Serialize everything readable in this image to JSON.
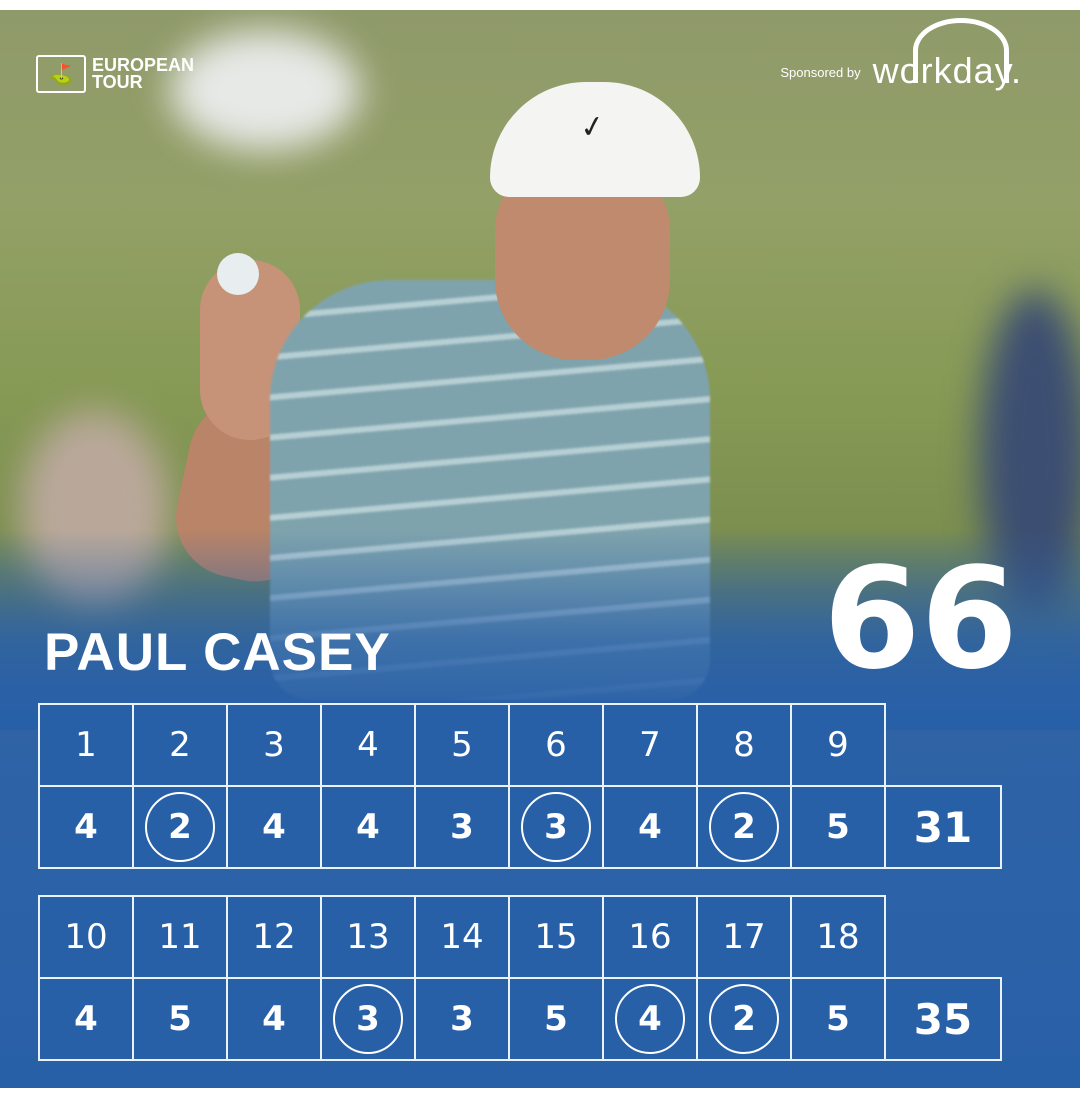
{
  "brand": {
    "logo_line1": "EUROPEAN",
    "logo_line2": "TOUR",
    "sponsored_by": "Sponsored by",
    "sponsor": "workday."
  },
  "player": {
    "name": "PAUL CASEY",
    "total": "66"
  },
  "colors": {
    "panel_blue": "#2860a8",
    "grid_line": "#eaf2fb"
  },
  "front_nine": {
    "holes": [
      "1",
      "2",
      "3",
      "4",
      "5",
      "6",
      "7",
      "8",
      "9"
    ],
    "scores": [
      "4",
      "2",
      "4",
      "4",
      "3",
      "3",
      "4",
      "2",
      "5"
    ],
    "circled": [
      false,
      true,
      false,
      false,
      false,
      true,
      false,
      true,
      false
    ],
    "subtotal": "31"
  },
  "back_nine": {
    "holes": [
      "10",
      "11",
      "12",
      "13",
      "14",
      "15",
      "16",
      "17",
      "18"
    ],
    "scores": [
      "4",
      "5",
      "4",
      "3",
      "3",
      "5",
      "4",
      "2",
      "5"
    ],
    "circled": [
      false,
      false,
      false,
      true,
      false,
      false,
      true,
      true,
      false
    ],
    "subtotal": "35"
  }
}
